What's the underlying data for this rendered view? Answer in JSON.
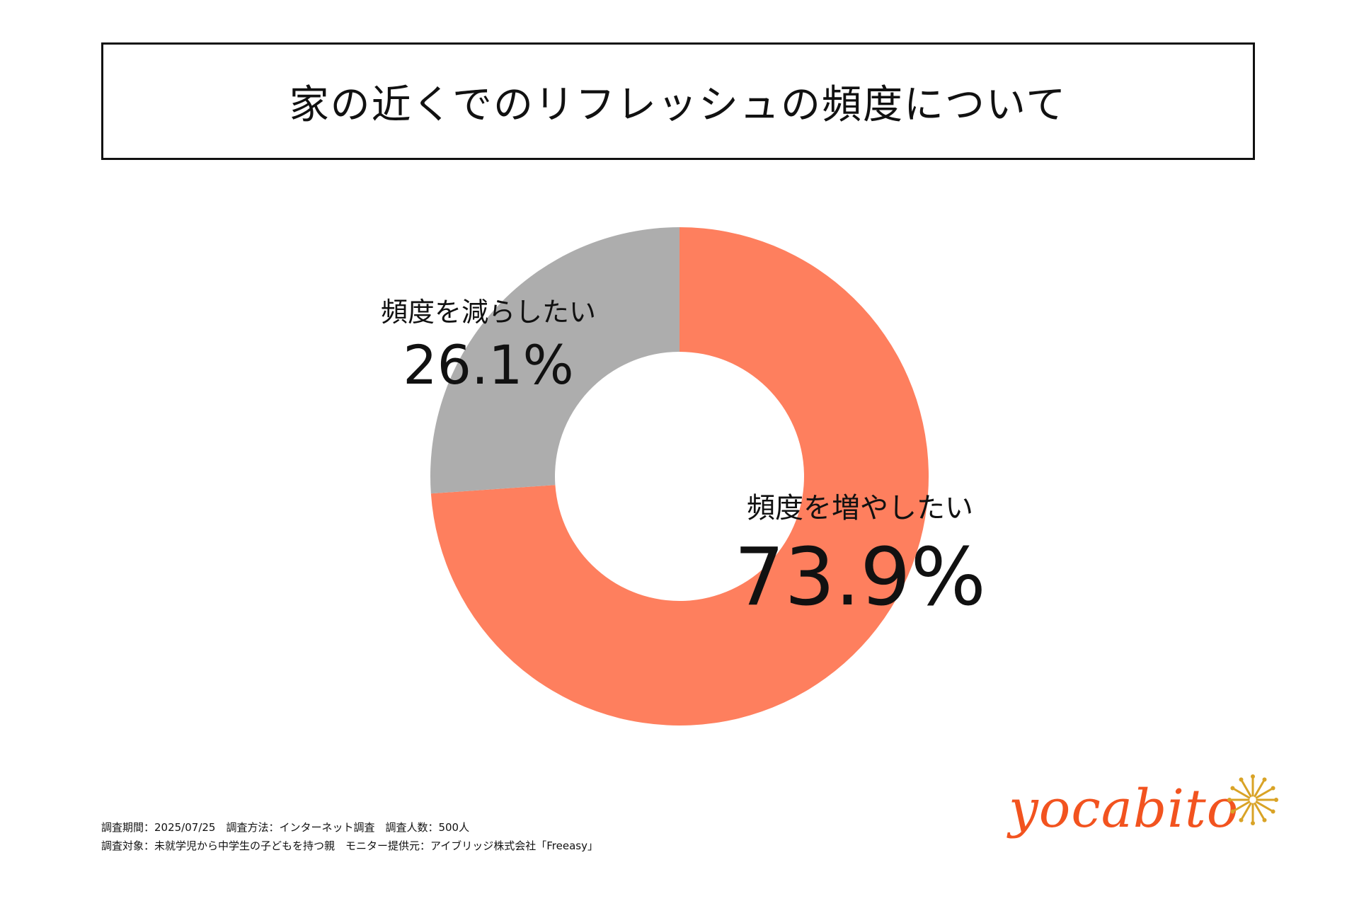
{
  "title": "家の近くでのリフレッシュの頻度について",
  "chart_data": {
    "type": "pie",
    "title": "家の近くでのリフレッシュの頻度について",
    "categories": [
      "頻度を増やしたい",
      "頻度を減らしたい"
    ],
    "values": [
      73.9,
      26.1
    ],
    "value_labels": [
      "73.9%",
      "26.1%"
    ],
    "colors": [
      "#fe7f5e",
      "#adadad"
    ],
    "donut": true
  },
  "footer": {
    "line1": "調査期間：2025/07/25　調査方法：インターネット調査　調査人数：500人",
    "line2": "調査対象：未就学児から中学生の子どもを持つ親　モニター提供元：アイブリッジ株式会社「Freeasy」"
  },
  "logo": {
    "text": "yocabito",
    "color": "#f2531f",
    "accent_color": "#d9a326"
  }
}
